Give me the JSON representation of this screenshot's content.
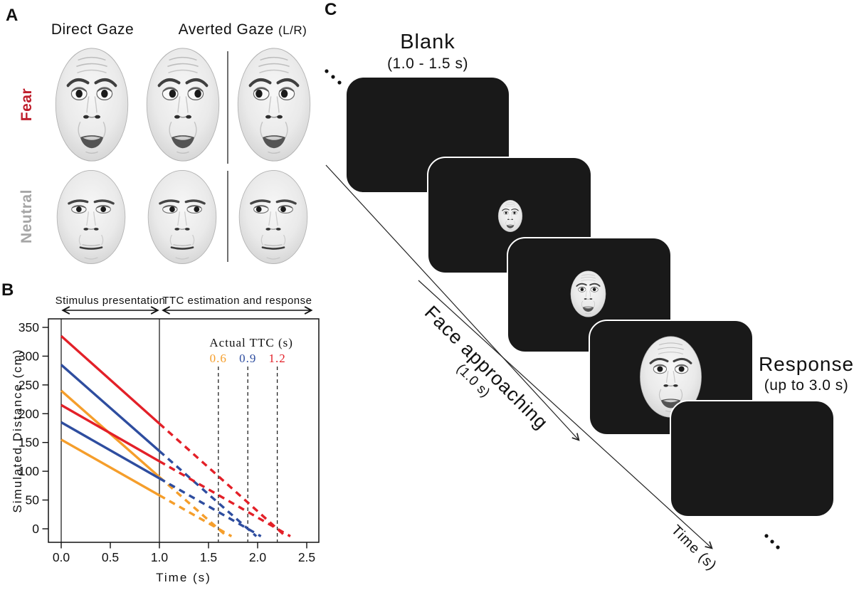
{
  "panels": {
    "a": {
      "label": "A",
      "columns": {
        "direct": "Direct Gaze",
        "averted": "Averted Gaze",
        "averted_note": "(L/R)"
      },
      "rows": {
        "fear": "Fear",
        "neutral": "Neutral"
      },
      "row_colors": {
        "fear": "#bf1e2c",
        "neutral": "#a6a6a6"
      }
    },
    "b": {
      "label": "B"
    },
    "c": {
      "label": "C",
      "blank_title": "Blank",
      "blank_duration": "(1.0 - 1.5 s)",
      "approach_title": "Face approaching",
      "approach_duration": "(1.0 s)",
      "response_title": "Response",
      "response_duration": "(up to 3.0 s)",
      "time_axis_label": "Time (s)"
    }
  },
  "chart_data": {
    "type": "line",
    "xlabel": "Time (s)",
    "ylabel": "Simulated Distance (cm)",
    "xlim": [
      -0.13,
      2.62
    ],
    "ylim": [
      -24,
      365
    ],
    "xticks": [
      0.0,
      0.5,
      1.0,
      1.5,
      2.0,
      2.5
    ],
    "xtick_labels": [
      "0.0",
      "0.5",
      "1.0",
      "1.5",
      "2.0",
      "2.5"
    ],
    "yticks": [
      0,
      50,
      100,
      150,
      200,
      250,
      300,
      350
    ],
    "ytick_labels": [
      "0",
      "50",
      "100",
      "150",
      "200",
      "250",
      "300",
      "350"
    ],
    "grid": false,
    "phases": [
      {
        "text": "Stimulus presentation",
        "t0": 0.0,
        "t1": 1.0
      },
      {
        "text": "TTC estimation and response",
        "t0": 1.02,
        "t1": 2.565
      }
    ],
    "solid_vlines_t": [
      0.0,
      1.0
    ],
    "solid_until_t": 1.0,
    "overshoot_cm": -13,
    "dashed_vline_top_cm": 282,
    "legend": {
      "title": "Actual TTC (s)",
      "entries": [
        {
          "label": "0.6",
          "contact_t": 1.6,
          "color": "#f59e2b"
        },
        {
          "label": "0.9",
          "contact_t": 1.9,
          "color": "#2e4d9f"
        },
        {
          "label": "1.2",
          "contact_t": 2.2,
          "color": "#e32028"
        }
      ]
    },
    "series": [
      {
        "id": "ttc-1-2-far",
        "name": "TTC 1.2 s, far start",
        "color": "#e32028",
        "start_cm": 335,
        "contact_t": 2.2
      },
      {
        "id": "ttc-0-9-far",
        "name": "TTC 0.9 s, far start",
        "color": "#2e4d9f",
        "start_cm": 285,
        "contact_t": 1.9
      },
      {
        "id": "ttc-0-6-far",
        "name": "TTC 0.6 s, far start",
        "color": "#f59e2b",
        "start_cm": 240,
        "contact_t": 1.6
      },
      {
        "id": "ttc-1-2-near",
        "name": "TTC 1.2 s, near start",
        "color": "#e32028",
        "start_cm": 215,
        "contact_t": 2.2
      },
      {
        "id": "ttc-0-9-near",
        "name": "TTC 0.9 s, near start",
        "color": "#2e4d9f",
        "start_cm": 185,
        "contact_t": 1.9
      },
      {
        "id": "ttc-0-6-near",
        "name": "TTC 0.6 s, near start",
        "color": "#f59e2b",
        "start_cm": 155,
        "contact_t": 1.6
      }
    ]
  }
}
